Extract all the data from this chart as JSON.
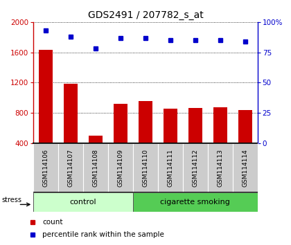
{
  "title": "GDS2491 / 207782_s_at",
  "samples": [
    "GSM114106",
    "GSM114107",
    "GSM114108",
    "GSM114109",
    "GSM114110",
    "GSM114111",
    "GSM114112",
    "GSM114113",
    "GSM114114"
  ],
  "counts": [
    1630,
    1190,
    500,
    920,
    960,
    860,
    870,
    880,
    840
  ],
  "percentiles": [
    93,
    88,
    78,
    87,
    87,
    85,
    85,
    85,
    84
  ],
  "ylim_left": [
    400,
    2000
  ],
  "ylim_right": [
    0,
    100
  ],
  "yticks_left": [
    400,
    800,
    1200,
    1600,
    2000
  ],
  "yticks_right": [
    0,
    25,
    50,
    75,
    100
  ],
  "ytick_right_labels": [
    "0",
    "25",
    "50",
    "75",
    "100%"
  ],
  "bar_color": "#cc0000",
  "dot_color": "#0000cc",
  "n_control": 4,
  "n_smoking": 5,
  "label_control": "control",
  "label_smoking": "cigarette smoking",
  "stress_label": "stress",
  "legend_count": "count",
  "legend_percentile": "percentile rank within the sample",
  "control_bg": "#ccffcc",
  "smoking_bg": "#55cc55",
  "xlabel_area_bg": "#cccccc",
  "title_fontsize": 10,
  "tick_fontsize": 7.5,
  "label_fontsize": 8,
  "legend_fontsize": 7.5
}
